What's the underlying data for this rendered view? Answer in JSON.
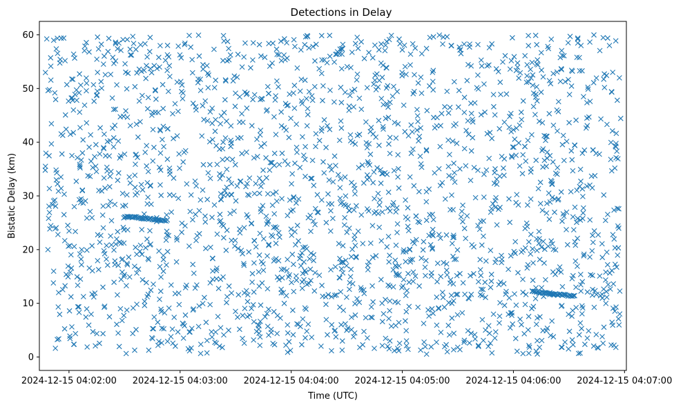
{
  "chart_data": {
    "type": "scatter",
    "title": "Detections in Delay",
    "xlabel": "Time (UTC)",
    "ylabel": "Bistatic Delay (km)",
    "marker": "x",
    "color": "#1f77b4",
    "grid": false,
    "xlim": [
      "2024-12-15 04:01:44",
      "2024-12-15 04:07:01"
    ],
    "ylim": [
      -2.5,
      62.5
    ],
    "x_ticks": [
      "2024-12-15 04:02:00",
      "2024-12-15 04:03:00",
      "2024-12-15 04:04:00",
      "2024-12-15 04:05:00",
      "2024-12-15 04:06:00",
      "2024-12-15 04:07:00"
    ],
    "y_ticks": [
      0,
      10,
      20,
      30,
      40,
      50,
      60
    ],
    "x_range_data": [
      "2024-12-15 04:01:47",
      "2024-12-15 04:06:58"
    ],
    "y_range_data": [
      0.5,
      60
    ],
    "approx_point_count": 2200,
    "tracks": [
      {
        "x_start": "2024-12-15 04:02:30",
        "x_end": "2024-12-15 04:02:53",
        "y_start": 26.2,
        "y_end": 25.4
      },
      {
        "x_start": "2024-12-15 04:06:10",
        "x_end": "2024-12-15 04:06:33",
        "y_start": 12.2,
        "y_end": 11.3
      }
    ]
  }
}
